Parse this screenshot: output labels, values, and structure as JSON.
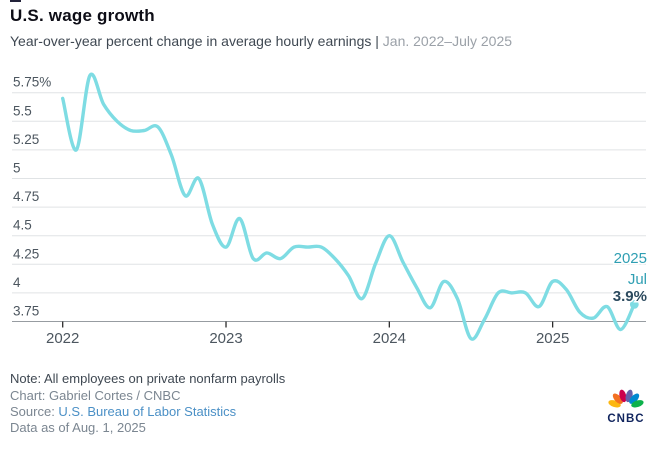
{
  "header": {
    "title": "U.S. wage growth",
    "subtitle": "Year-over-year percent change in average hourly earnings | ",
    "subtitle_range": "Jan. 2022–July 2025"
  },
  "chart_data": {
    "type": "line",
    "title": "U.S. wage growth",
    "series_name": "Year-over-year percent change in average hourly earnings",
    "unit": "percent",
    "frequency": "monthly",
    "x": [
      "Jan 2022",
      "Feb 2022",
      "Mar 2022",
      "Apr 2022",
      "May 2022",
      "Jun 2022",
      "Jul 2022",
      "Aug 2022",
      "Sep 2022",
      "Oct 2022",
      "Nov 2022",
      "Dec 2022",
      "Jan 2023",
      "Feb 2023",
      "Mar 2023",
      "Apr 2023",
      "May 2023",
      "Jun 2023",
      "Jul 2023",
      "Aug 2023",
      "Sep 2023",
      "Oct 2023",
      "Nov 2023",
      "Dec 2023",
      "Jan 2024",
      "Feb 2024",
      "Mar 2024",
      "Apr 2024",
      "May 2024",
      "Jun 2024",
      "Jul 2024",
      "Aug 2024",
      "Sep 2024",
      "Oct 2024",
      "Nov 2024",
      "Dec 2024",
      "Jan 2025",
      "Feb 2025",
      "Mar 2025",
      "Apr 2025",
      "May 2025",
      "Jun 2025",
      "Jul 2025"
    ],
    "values": [
      5.7,
      5.25,
      5.9,
      5.65,
      5.5,
      5.42,
      5.42,
      5.45,
      5.2,
      4.85,
      5.0,
      4.6,
      4.4,
      4.65,
      4.3,
      4.35,
      4.3,
      4.4,
      4.4,
      4.4,
      4.3,
      4.15,
      3.95,
      4.26,
      4.5,
      4.27,
      4.05,
      3.87,
      4.1,
      3.95,
      3.6,
      3.77,
      4.0,
      4.0,
      4.0,
      3.88,
      4.1,
      4.03,
      3.83,
      3.78,
      3.88,
      3.68,
      3.9
    ],
    "y_ticks": [
      "5.75%",
      "5.5",
      "5.25",
      "5",
      "4.75",
      "4.5",
      "4.25",
      "4",
      "3.75"
    ],
    "y_tick_values": [
      5.75,
      5.5,
      5.25,
      5,
      4.75,
      4.5,
      4.25,
      4,
      3.75
    ],
    "x_ticks": [
      {
        "label": "2022",
        "month_index": 0
      },
      {
        "label": "2023",
        "month_index": 12
      },
      {
        "label": "2024",
        "month_index": 24
      },
      {
        "label": "2025",
        "month_index": 36
      }
    ],
    "ylim": [
      3.6,
      5.95
    ],
    "grid": "horizontal",
    "legend": "none",
    "line_color": "#7EDCE3",
    "annotation": {
      "year": "2025",
      "month": "Jul",
      "value": "3.9%"
    }
  },
  "footer": {
    "note": "Note: All employees on private nonfarm payrolls",
    "credit": "Chart: Gabriel Cortes / CNBC",
    "source_label": "Source: ",
    "source_link": "U.S. Bureau of Labor Statistics",
    "data_as_of": "Data as of Aug. 1, 2025"
  },
  "logo": {
    "brand": "CNBC",
    "feather_colors": [
      "#FCB711",
      "#F37021",
      "#CC004C",
      "#6460AA",
      "#0089D0",
      "#0DB14B"
    ]
  }
}
